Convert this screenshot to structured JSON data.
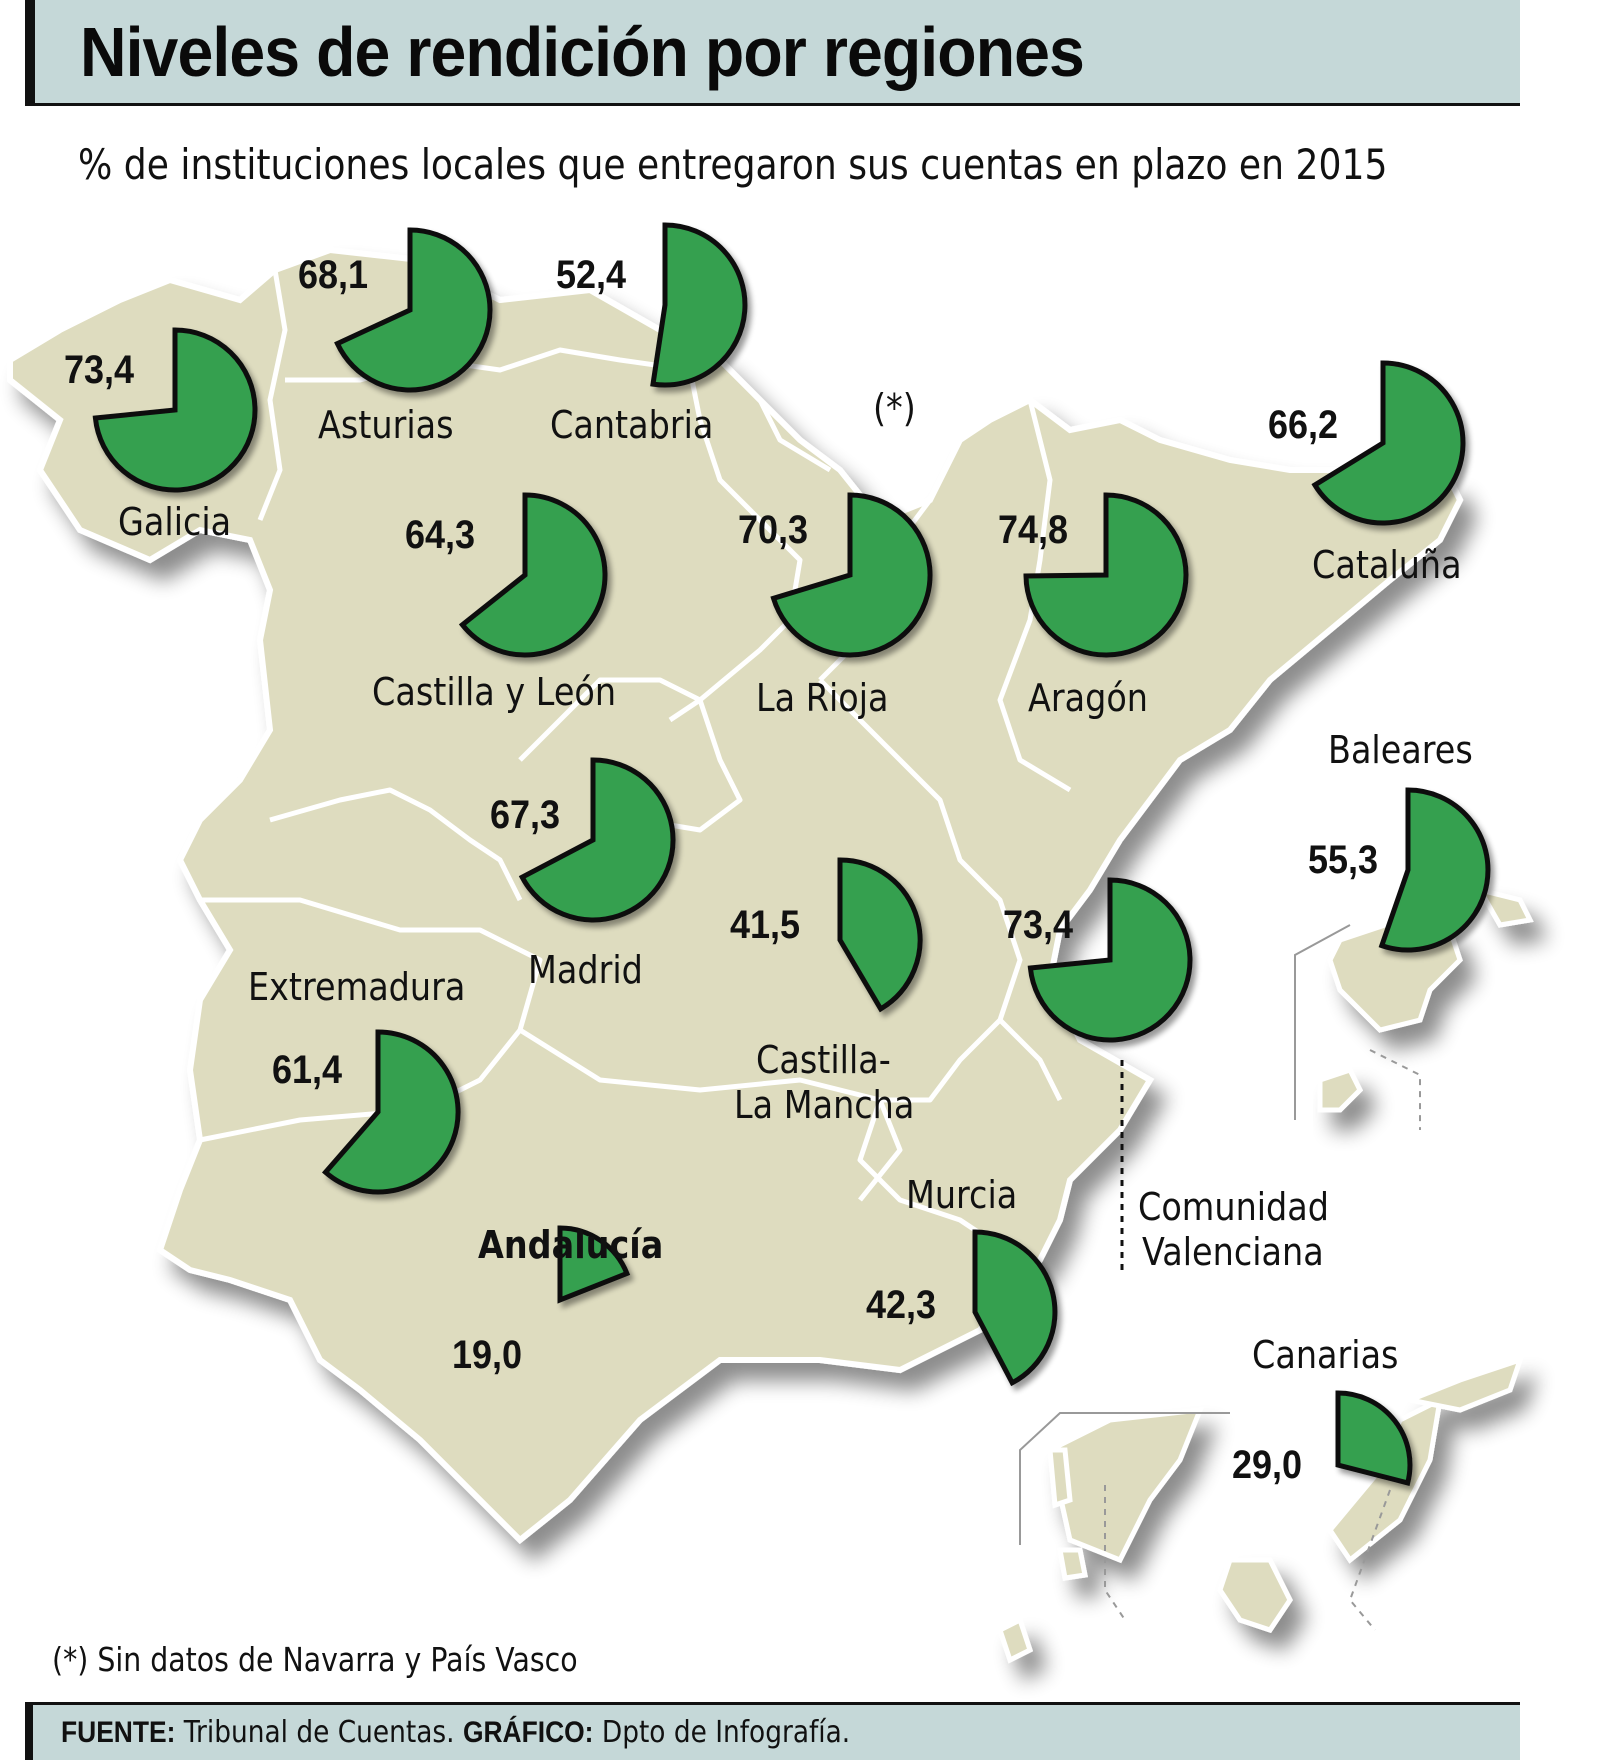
{
  "header": {
    "title": "Niveles de rendición por regiones",
    "subtitle": "% de instituciones locales que entregaron sus cuentas en plazo en 2015"
  },
  "colors": {
    "header_bg": "#c5d8d8",
    "land": "#dedcbf",
    "pie_fill": "#34a050",
    "pie_stroke": "#111111",
    "border": "#ffffff"
  },
  "regions": [
    {
      "name": "Galicia",
      "value_label": "73,4"
    },
    {
      "name": "Asturias",
      "value_label": "68,1"
    },
    {
      "name": "Cantabria",
      "value_label": "52,4"
    },
    {
      "name": "Cataluña",
      "value_label": "66,2"
    },
    {
      "name": "Castilla y León",
      "value_label": "64,3"
    },
    {
      "name": "La Rioja",
      "value_label": "70,3"
    },
    {
      "name": "Aragón",
      "value_label": "74,8"
    },
    {
      "name": "Baleares",
      "value_label": "55,3"
    },
    {
      "name": "Madrid",
      "value_label": "67,3"
    },
    {
      "name": "Castilla-",
      "value_label": "41,5",
      "name_line2": "La Mancha"
    },
    {
      "name": "Comunidad",
      "value_label": "73,4",
      "name_line2": "Valenciana"
    },
    {
      "name": "Extremadura",
      "value_label": "61,4"
    },
    {
      "name": "Murcia",
      "value_label": "42,3"
    },
    {
      "name": "Andalucía",
      "value_label": "19,0"
    },
    {
      "name": "Canarias",
      "value_label": "29,0"
    }
  ],
  "no_data_marker": "(*)",
  "note": "(*) Sin datos de Navarra y País Vasco",
  "footer": {
    "source_label": "FUENTE:",
    "source_text": " Tribunal de Cuentas. ",
    "graphic_label": "GRÁFICO:",
    "graphic_text": " Dpto de Infografía."
  },
  "chart_data": {
    "type": "pie",
    "title": "Niveles de rendición por regiones",
    "subtitle": "% de instituciones locales que entregaron sus cuentas en plazo en 2015",
    "unit": "%",
    "categories": [
      "Galicia",
      "Asturias",
      "Cantabria",
      "Cataluña",
      "Castilla y León",
      "La Rioja",
      "Aragón",
      "Baleares",
      "Madrid",
      "Castilla-La Mancha",
      "Comunidad Valenciana",
      "Extremadura",
      "Murcia",
      "Andalucía",
      "Canarias"
    ],
    "values": [
      73.4,
      68.1,
      52.4,
      66.2,
      64.3,
      70.3,
      74.8,
      55.3,
      67.3,
      41.5,
      73.4,
      61.4,
      42.3,
      19.0,
      29.0
    ],
    "annotations": [
      "(*) Sin datos de Navarra y País Vasco"
    ],
    "source": "Tribunal de Cuentas",
    "layout": "choropleth-style map of Spain with a proportional pie wedge per region (start at 12 o'clock, clockwise)"
  }
}
